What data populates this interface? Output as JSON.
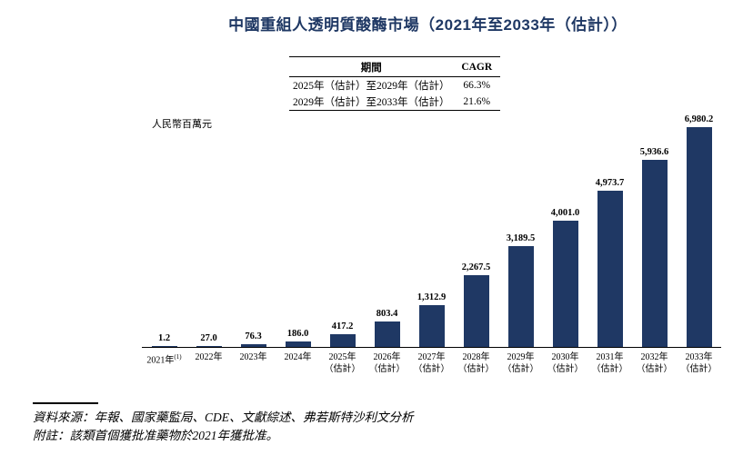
{
  "title": "中國重組人透明質酸酶市場（2021年至2033年（估計））",
  "table": {
    "headers": [
      "期間",
      "CAGR"
    ],
    "rows": [
      [
        "2025年（估計）至2029年（估計）",
        "66.3%"
      ],
      [
        "2029年（估計）至2033年（估計）",
        "21.6%"
      ]
    ]
  },
  "unit_label": "人民幣百萬元",
  "chart_data": {
    "type": "bar",
    "title": "中國重組人透明質酸酶市場（2021年至2033年（估計））",
    "ylabel": "人民幣百萬元",
    "xlabel": "",
    "ylim": [
      0,
      7000
    ],
    "grid": false,
    "legend": "none",
    "bar_color": "#1f3864",
    "categories": [
      {
        "line1": "2021年",
        "sup": "(1)",
        "line2": ""
      },
      {
        "line1": "2022年",
        "line2": ""
      },
      {
        "line1": "2023年",
        "line2": ""
      },
      {
        "line1": "2024年",
        "line2": ""
      },
      {
        "line1": "2025年",
        "line2": "（估計）"
      },
      {
        "line1": "2026年",
        "line2": "（估計）"
      },
      {
        "line1": "2027年",
        "line2": "（估計）"
      },
      {
        "line1": "2028年",
        "line2": "（估計）"
      },
      {
        "line1": "2029年",
        "line2": "（估計）"
      },
      {
        "line1": "2030年",
        "line2": "（估計）"
      },
      {
        "line1": "2031年",
        "line2": "（估計）"
      },
      {
        "line1": "2032年",
        "line2": "（估計）"
      },
      {
        "line1": "2033年",
        "line2": "（估計）"
      }
    ],
    "values": [
      1.2,
      27.0,
      76.3,
      186.0,
      417.2,
      803.4,
      1312.9,
      2267.5,
      3189.5,
      4001.0,
      4973.7,
      5936.6,
      6980.2
    ],
    "value_labels": [
      "1.2",
      "27.0",
      "76.3",
      "186.0",
      "417.2",
      "803.4",
      "1,312.9",
      "2,267.5",
      "3,189.5",
      "4,001.0",
      "4,973.7",
      "5,936.6",
      "6,980.2"
    ]
  },
  "footer": {
    "source": "資料來源：年報、國家藥監局、CDE、文獻綜述、弗若斯特沙利文分析",
    "note": "附註：該類首個獲批准藥物於2021年獲批准。"
  }
}
